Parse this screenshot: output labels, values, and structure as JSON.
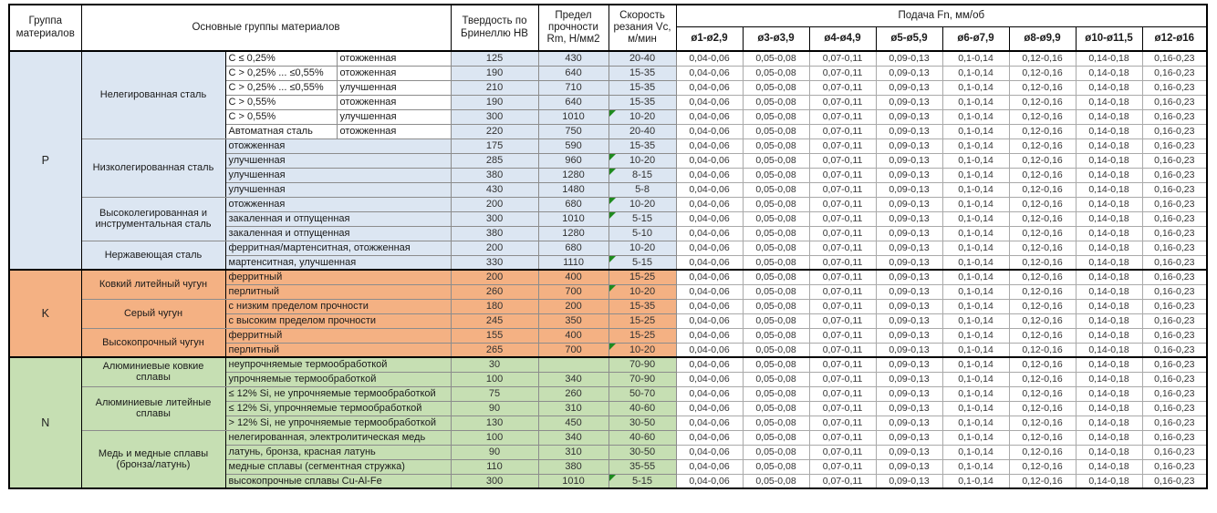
{
  "header": {
    "col_group": "Группа материалов",
    "col_main_groups": "Основные группы материалов",
    "col_hb": "Твердость по Бринеллю HB",
    "col_rm": "Предел прочности Rm, Н/мм2",
    "col_vc": "Скорость резания Vc, м/мин",
    "col_feed": "Подача Fn, мм/об",
    "feed_cols": [
      "ø1-ø2,9",
      "ø3-ø3,9",
      "ø4-ø4,9",
      "ø5-ø5,9",
      "ø6-ø7,9",
      "ø8-ø9,9",
      "ø10-ø11,5",
      "ø12-ø16"
    ]
  },
  "feed_values": [
    "0,04-0,06",
    "0,05-0,08",
    "0,07-0,11",
    "0,09-0,13",
    "0,1-0,14",
    "0,12-0,16",
    "0,14-0,18",
    "0,16-0,23"
  ],
  "colors": {
    "section_p": "#dce6f2",
    "section_k": "#f4b183",
    "section_n": "#c6dfb3",
    "flag": "#1e8a1e",
    "white_desc": "#ffffff"
  },
  "sections": [
    {
      "letter": "P",
      "color": "#dce6f2",
      "subgroups": [
        {
          "name": "Нелегированная сталь",
          "desc_white": true,
          "rows": [
            {
              "desc": [
                "C ≤ 0,25%",
                "отожженная"
              ],
              "hb": "125",
              "rm": "430",
              "vc": "20-40",
              "flag": false
            },
            {
              "desc": [
                "C > 0,25% ... ≤0,55%",
                "отожженная"
              ],
              "hb": "190",
              "rm": "640",
              "vc": "15-35",
              "flag": false
            },
            {
              "desc": [
                "C > 0,25% ... ≤0,55%",
                "улучшенная"
              ],
              "hb": "210",
              "rm": "710",
              "vc": "15-35",
              "flag": false
            },
            {
              "desc": [
                "C > 0,55%",
                "отожженная"
              ],
              "hb": "190",
              "rm": "640",
              "vc": "15-35",
              "flag": false
            },
            {
              "desc": [
                "C > 0,55%",
                "улучшенная"
              ],
              "hb": "300",
              "rm": "1010",
              "vc": "10-20",
              "flag": true
            },
            {
              "desc": [
                "Автоматная сталь",
                "отожженная"
              ],
              "hb": "220",
              "rm": "750",
              "vc": "20-40",
              "flag": false
            }
          ]
        },
        {
          "name": "Низколегированная сталь",
          "desc_white": false,
          "rows": [
            {
              "desc": [
                "отожженная"
              ],
              "hb": "175",
              "rm": "590",
              "vc": "15-35",
              "flag": false
            },
            {
              "desc": [
                "улучшенная"
              ],
              "hb": "285",
              "rm": "960",
              "vc": "10-20",
              "flag": true
            },
            {
              "desc": [
                "улучшенная"
              ],
              "hb": "380",
              "rm": "1280",
              "vc": "8-15",
              "flag": true
            },
            {
              "desc": [
                "улучшенная"
              ],
              "hb": "430",
              "rm": "1480",
              "vc": "5-8",
              "flag": false
            }
          ]
        },
        {
          "name": "Высоколегированная и инструментальная сталь",
          "desc_white": false,
          "rows": [
            {
              "desc": [
                "отожженная"
              ],
              "hb": "200",
              "rm": "680",
              "vc": "10-20",
              "flag": true
            },
            {
              "desc": [
                "закаленная и отпущенная"
              ],
              "hb": "300",
              "rm": "1010",
              "vc": "5-15",
              "flag": true
            },
            {
              "desc": [
                "закаленная и отпущенная"
              ],
              "hb": "380",
              "rm": "1280",
              "vc": "5-10",
              "flag": false
            }
          ]
        },
        {
          "name": "Нержавеющая сталь",
          "desc_white": false,
          "rows": [
            {
              "desc": [
                "ферритная/мартенситная, отожженная"
              ],
              "hb": "200",
              "rm": "680",
              "vc": "10-20",
              "flag": false
            },
            {
              "desc": [
                "мартенситная, улучшенная"
              ],
              "hb": "330",
              "rm": "1110",
              "vc": "5-15",
              "flag": true
            }
          ]
        }
      ]
    },
    {
      "letter": "K",
      "color": "#f4b183",
      "subgroups": [
        {
          "name": "Ковкий литейный чугун",
          "desc_white": false,
          "rows": [
            {
              "desc": [
                "ферритный"
              ],
              "hb": "200",
              "rm": "400",
              "vc": "15-25",
              "flag": false
            },
            {
              "desc": [
                "перлитный"
              ],
              "hb": "260",
              "rm": "700",
              "vc": "10-20",
              "flag": true
            }
          ]
        },
        {
          "name": "Серый чугун",
          "desc_white": false,
          "rows": [
            {
              "desc": [
                "с низким пределом прочности"
              ],
              "hb": "180",
              "rm": "200",
              "vc": "15-35",
              "flag": false
            },
            {
              "desc": [
                "с высоким пределом прочности"
              ],
              "hb": "245",
              "rm": "350",
              "vc": "15-25",
              "flag": false
            }
          ]
        },
        {
          "name": "Высокопрочный чугун",
          "desc_white": false,
          "rows": [
            {
              "desc": [
                "ферритный"
              ],
              "hb": "155",
              "rm": "400",
              "vc": "15-25",
              "flag": false
            },
            {
              "desc": [
                "перлитный"
              ],
              "hb": "265",
              "rm": "700",
              "vc": "10-20",
              "flag": true
            }
          ]
        }
      ]
    },
    {
      "letter": "N",
      "color": "#c6dfb3",
      "subgroups": [
        {
          "name": "Алюминиевые ковкие сплавы",
          "desc_white": false,
          "rows": [
            {
              "desc": [
                "неупрочняемые термообработкой"
              ],
              "hb": "30",
              "rm": "",
              "vc": "70-90",
              "flag": false
            },
            {
              "desc": [
                "упрочняемые термообработкой"
              ],
              "hb": "100",
              "rm": "340",
              "vc": "70-90",
              "flag": false
            }
          ]
        },
        {
          "name": "Алюминиевые литейные сплавы",
          "desc_white": false,
          "rows": [
            {
              "desc": [
                "≤ 12% Si, не упрочняемые термообработкой"
              ],
              "hb": "75",
              "rm": "260",
              "vc": "50-70",
              "flag": false
            },
            {
              "desc": [
                "≤ 12% Si, упрочняемые термообработкой"
              ],
              "hb": "90",
              "rm": "310",
              "vc": "40-60",
              "flag": false
            },
            {
              "desc": [
                "> 12% Si, не упрочняемые термообработкой"
              ],
              "hb": "130",
              "rm": "450",
              "vc": "30-50",
              "flag": false
            }
          ]
        },
        {
          "name": "Медь и медные сплавы (бронза/латунь)",
          "desc_white": false,
          "rows": [
            {
              "desc": [
                "нелегированная, электролитическая медь"
              ],
              "hb": "100",
              "rm": "340",
              "vc": "40-60",
              "flag": false
            },
            {
              "desc": [
                "латунь, бронза, красная латунь"
              ],
              "hb": "90",
              "rm": "310",
              "vc": "30-50",
              "flag": false
            },
            {
              "desc": [
                "медные сплавы (сегментная стружка)"
              ],
              "hb": "110",
              "rm": "380",
              "vc": "35-55",
              "flag": false
            },
            {
              "desc": [
                "высокопрочные сплавы Cu-Al-Fe"
              ],
              "hb": "300",
              "rm": "1010",
              "vc": "5-15",
              "flag": true
            }
          ]
        }
      ]
    }
  ]
}
